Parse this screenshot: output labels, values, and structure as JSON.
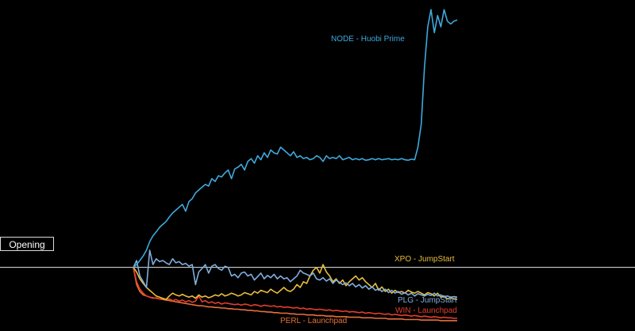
{
  "chart_data": {
    "type": "line",
    "title": "",
    "xlabel": "",
    "ylabel": "",
    "baseline": {
      "label": "Opening",
      "value": 1.0
    },
    "ylim": [
      0.0,
      5.6
    ],
    "x_count": 100,
    "series": [
      {
        "name": "NODE - Huobi Prime",
        "color": "#3fa9dc",
        "values": [
          1.0,
          1.05,
          1.12,
          1.2,
          1.3,
          1.45,
          1.55,
          1.62,
          1.7,
          1.75,
          1.8,
          1.88,
          1.95,
          2.0,
          2.05,
          2.1,
          1.98,
          2.15,
          2.2,
          2.3,
          2.35,
          2.4,
          2.45,
          2.42,
          2.55,
          2.5,
          2.6,
          2.58,
          2.65,
          2.7,
          2.55,
          2.72,
          2.75,
          2.8,
          2.7,
          2.85,
          2.9,
          2.82,
          2.95,
          2.88,
          3.0,
          2.92,
          3.05,
          3.0,
          2.98,
          3.1,
          3.05,
          3.0,
          2.95,
          3.02,
          2.92,
          2.95,
          2.9,
          2.92,
          2.88,
          2.9,
          2.95,
          2.92,
          2.85,
          2.95,
          2.9,
          2.92,
          2.9,
          2.95,
          2.88,
          2.9,
          2.92,
          2.88,
          2.9,
          2.88,
          2.9,
          2.87,
          2.88,
          2.9,
          2.88,
          2.9,
          2.88,
          2.89,
          2.9,
          2.88,
          2.89,
          2.88,
          2.9,
          2.88,
          2.87,
          2.89,
          2.88,
          3.1,
          3.5,
          4.5,
          5.2,
          5.5,
          5.1,
          5.4,
          5.2,
          5.5,
          5.3,
          5.25,
          5.3,
          5.32
        ]
      },
      {
        "name": "PLG - JumpStart",
        "color": "#7faedd",
        "values": [
          1.0,
          1.12,
          0.85,
          0.75,
          0.65,
          1.3,
          1.05,
          1.15,
          1.1,
          1.12,
          1.08,
          1.05,
          1.15,
          1.08,
          1.1,
          1.05,
          1.07,
          1.02,
          1.05,
          0.7,
          0.92,
          0.98,
          1.05,
          0.9,
          1.02,
          1.05,
          0.98,
          0.95,
          1.02,
          1.0,
          0.85,
          0.88,
          0.82,
          0.9,
          0.92,
          0.85,
          0.88,
          0.78,
          0.84,
          0.9,
          0.8,
          0.86,
          0.82,
          0.88,
          0.8,
          0.85,
          0.8,
          0.82,
          0.75,
          0.8,
          0.85,
          0.95,
          0.9,
          0.88,
          0.85,
          0.9,
          0.8,
          0.78,
          0.82,
          0.76,
          0.8,
          0.72,
          0.78,
          0.74,
          0.7,
          0.73,
          0.68,
          0.72,
          0.66,
          0.7,
          0.64,
          0.68,
          0.62,
          0.66,
          0.6,
          0.63,
          0.58,
          0.62,
          0.56,
          0.6,
          0.55,
          0.58,
          0.53,
          0.56,
          0.52,
          0.55,
          0.5,
          0.54,
          0.52,
          0.5,
          0.53,
          0.51,
          0.55,
          0.5,
          0.52,
          0.49,
          0.5,
          0.48,
          0.49,
          0.48
        ]
      },
      {
        "name": "XPO - JumpStart",
        "color": "#e9bd3c",
        "values": [
          1.0,
          0.92,
          0.8,
          0.72,
          0.65,
          0.6,
          0.55,
          0.5,
          0.48,
          0.46,
          0.44,
          0.5,
          0.55,
          0.52,
          0.5,
          0.53,
          0.5,
          0.48,
          0.5,
          0.46,
          0.52,
          0.48,
          0.5,
          0.47,
          0.49,
          0.52,
          0.5,
          0.54,
          0.5,
          0.52,
          0.55,
          0.53,
          0.5,
          0.52,
          0.56,
          0.54,
          0.52,
          0.58,
          0.55,
          0.6,
          0.58,
          0.56,
          0.62,
          0.58,
          0.55,
          0.6,
          0.65,
          0.6,
          0.58,
          0.62,
          0.7,
          0.65,
          0.75,
          0.72,
          0.85,
          0.95,
          1.0,
          0.9,
          1.05,
          0.92,
          0.85,
          0.75,
          0.8,
          0.72,
          0.78,
          0.68,
          0.75,
          0.8,
          0.85,
          0.78,
          0.82,
          0.75,
          0.7,
          0.65,
          0.72,
          0.6,
          0.66,
          0.58,
          0.62,
          0.55,
          0.6,
          0.56,
          0.58,
          0.55,
          0.6,
          0.57,
          0.55,
          0.58,
          0.55,
          0.52,
          0.56,
          0.54,
          0.5,
          0.55,
          0.48,
          0.5,
          0.45,
          0.47,
          0.45,
          0.44
        ]
      },
      {
        "name": "WIN - Launchpad",
        "color": "#e53e2c",
        "values": [
          1.0,
          0.75,
          0.62,
          0.55,
          0.5,
          0.48,
          0.46,
          0.47,
          0.45,
          0.46,
          0.44,
          0.45,
          0.42,
          0.44,
          0.41,
          0.43,
          0.4,
          0.42,
          0.39,
          0.41,
          0.5,
          0.4,
          0.42,
          0.38,
          0.4,
          0.37,
          0.39,
          0.36,
          0.38,
          0.37,
          0.36,
          0.35,
          0.36,
          0.34,
          0.36,
          0.35,
          0.33,
          0.35,
          0.34,
          0.32,
          0.34,
          0.33,
          0.32,
          0.33,
          0.31,
          0.32,
          0.3,
          0.31,
          0.3,
          0.29,
          0.3,
          0.28,
          0.29,
          0.27,
          0.28,
          0.27,
          0.26,
          0.27,
          0.26,
          0.25,
          0.26,
          0.24,
          0.25,
          0.24,
          0.23,
          0.24,
          0.22,
          0.23,
          0.22,
          0.21,
          0.22,
          0.2,
          0.21,
          0.2,
          0.19,
          0.2,
          0.19,
          0.18,
          0.19,
          0.17,
          0.18,
          0.17,
          0.16,
          0.17,
          0.16,
          0.15,
          0.16,
          0.15,
          0.14,
          0.15,
          0.14,
          0.13,
          0.14,
          0.13,
          0.12,
          0.13,
          0.12,
          0.12,
          0.11,
          0.11
        ]
      },
      {
        "name": "PERL - Launchpad",
        "color": "#e8703a",
        "values": [
          1.0,
          0.7,
          0.58,
          0.52,
          0.5,
          0.48,
          0.47,
          0.46,
          0.45,
          0.44,
          0.43,
          0.42,
          0.41,
          0.4,
          0.39,
          0.38,
          0.37,
          0.36,
          0.35,
          0.34,
          0.33,
          0.33,
          0.32,
          0.31,
          0.31,
          0.3,
          0.3,
          0.29,
          0.29,
          0.28,
          0.28,
          0.27,
          0.27,
          0.26,
          0.26,
          0.25,
          0.25,
          0.24,
          0.24,
          0.23,
          0.23,
          0.22,
          0.22,
          0.21,
          0.21,
          0.2,
          0.2,
          0.2,
          0.19,
          0.19,
          0.18,
          0.18,
          0.18,
          0.17,
          0.17,
          0.17,
          0.16,
          0.16,
          0.16,
          0.15,
          0.15,
          0.15,
          0.14,
          0.14,
          0.14,
          0.14,
          0.13,
          0.13,
          0.13,
          0.13,
          0.12,
          0.12,
          0.12,
          0.12,
          0.11,
          0.11,
          0.11,
          0.11,
          0.1,
          0.1,
          0.1,
          0.1,
          0.1,
          0.09,
          0.09,
          0.09,
          0.09,
          0.09,
          0.08,
          0.08,
          0.08,
          0.08,
          0.08,
          0.08,
          0.07,
          0.07,
          0.07,
          0.07,
          0.07,
          0.07
        ]
      }
    ]
  }
}
